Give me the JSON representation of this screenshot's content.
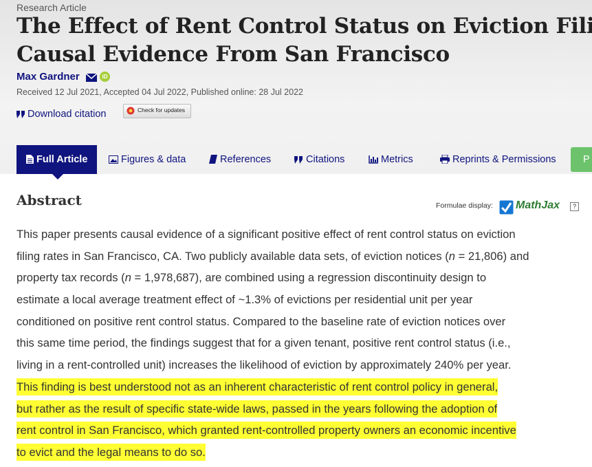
{
  "header": {
    "label": "Research Article",
    "title_lines": [
      "The Effect of Rent Control Status on Eviction Filing R",
      "Causal Evidence From San Francisco"
    ],
    "author": "Max Gardner",
    "orcid": "iD",
    "dates": "Received 12 Jul 2021, Accepted 04 Jul 2022, Published online: 28 Jul 2022",
    "download_citation": "Download citation",
    "check_updates": "Check for updates"
  },
  "tabs": [
    "Full Article",
    "Figures & data",
    "References",
    "Citations",
    "Metrics",
    "Reprints & Permissions",
    "P"
  ],
  "active_tab": 0,
  "abstract": {
    "heading": "Abstract",
    "formulae_display": "Formulae display:",
    "mathjax": "MathJax",
    "help": "?",
    "lines": [
      {
        "segments": [
          {
            "text": "This paper presents causal evidence of a significant positive effect of rent control status on eviction"
          }
        ]
      },
      {
        "segments": [
          {
            "text": "filing rates in San Francisco, CA. Two publicly available data sets, of eviction notices ("
          },
          {
            "text": "n",
            "style": "italic"
          },
          {
            "text": " = 21,806) and"
          }
        ]
      },
      {
        "segments": [
          {
            "text": "property tax records ("
          },
          {
            "text": "n",
            "style": "italic"
          },
          {
            "text": " = 1,978,687), are combined using a regression discontinuity design to"
          }
        ]
      },
      {
        "segments": [
          {
            "text": "estimate a local average treatment effect of ~1.3% of evictions per residential unit per year"
          }
        ]
      },
      {
        "segments": [
          {
            "text": "conditioned on positive rent control status. Compared to the baseline rate of eviction notices over"
          }
        ]
      },
      {
        "segments": [
          {
            "text": "this same time period, the findings suggest that for a given tenant, positive rent control status (i.e.,"
          }
        ]
      },
      {
        "segments": [
          {
            "text": "living in a rent-controlled unit) increases the likelihood of eviction by approximately 240% per year."
          }
        ]
      },
      {
        "segments": [
          {
            "text": "This finding is best understood not as an inherent characteristic of rent control policy in general,"
          }
        ],
        "highlighted": true
      },
      {
        "segments": [
          {
            "text": "but rather as the result of specific state-wide laws, passed in the years following the adoption of"
          }
        ],
        "highlighted": true
      },
      {
        "segments": [
          {
            "text": "rent control in San Francisco, which granted rent-controlled property owners an economic incentive"
          }
        ],
        "highlighted": true
      },
      {
        "segments": [
          {
            "text": "to evict and the legal means to do so."
          }
        ],
        "highlighted": true
      }
    ]
  }
}
